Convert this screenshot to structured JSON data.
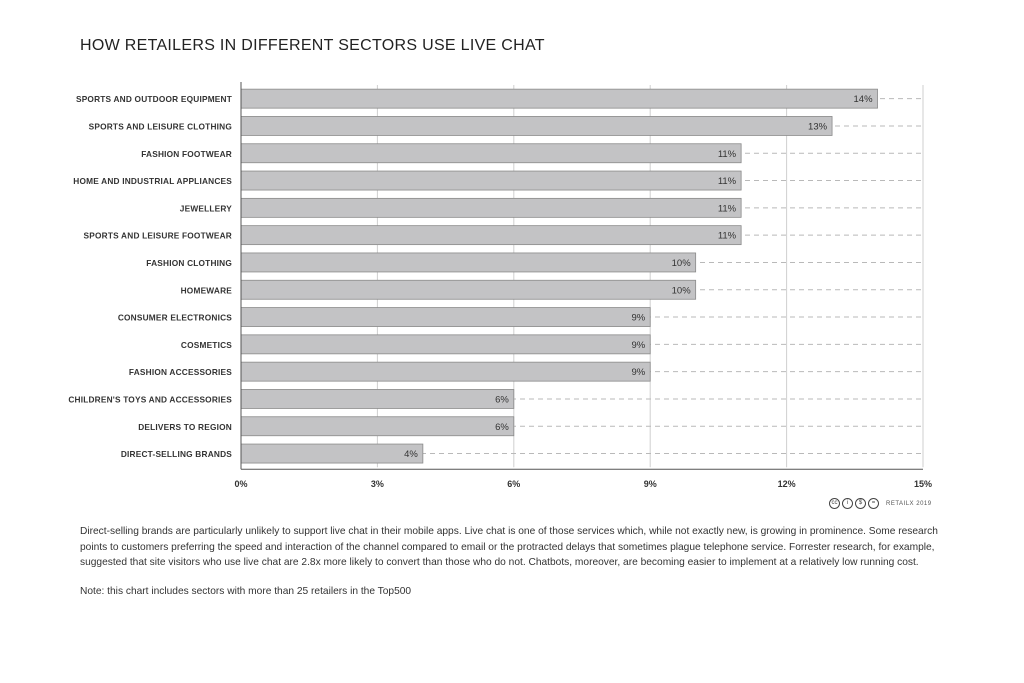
{
  "title": "HOW RETAILERS IN DIFFERENT SECTORS USE LIVE CHAT",
  "chart_data": {
    "type": "bar",
    "orientation": "horizontal",
    "title": "HOW RETAILERS IN DIFFERENT SECTORS USE LIVE CHAT",
    "categories": [
      "SPORTS AND OUTDOOR EQUIPMENT",
      "SPORTS AND LEISURE CLOTHING",
      "FASHION FOOTWEAR",
      "HOME AND INDUSTRIAL APPLIANCES",
      "JEWELLERY",
      "SPORTS AND LEISURE FOOTWEAR",
      "FASHION CLOTHING",
      "HOMEWARE",
      "CONSUMER ELECTRONICS",
      "COSMETICS",
      "FASHION ACCESSORIES",
      "CHILDREN'S TOYS AND ACCESSORIES",
      "DELIVERS TO REGION",
      "DIRECT-SELLING BRANDS"
    ],
    "values": [
      14,
      13,
      11,
      11,
      11,
      11,
      10,
      10,
      9,
      9,
      9,
      6,
      6,
      4
    ],
    "value_labels": [
      "14%",
      "13%",
      "11%",
      "11%",
      "11%",
      "11%",
      "10%",
      "10%",
      "9%",
      "9%",
      "9%",
      "6%",
      "6%",
      "4%"
    ],
    "xlim": [
      0,
      15
    ],
    "xticks": [
      0,
      3,
      6,
      9,
      12,
      15
    ],
    "xtick_labels": [
      "0%",
      "3%",
      "6%",
      "9%",
      "12%",
      "15%"
    ],
    "grid": true,
    "bar_color": "#c3c3c5",
    "bar_border": "#8a8a8a"
  },
  "credit": {
    "icons": [
      "cc-icon",
      "by-icon",
      "nc-icon",
      "nd-icon"
    ],
    "text": "RETAILX 2019"
  },
  "description": "Direct-selling brands are particularly unlikely to support live chat in their mobile apps. Live chat is one of those services which, while not exactly new, is growing in prominence. Some research points to customers preferring the speed and interaction of the channel compared to email or the protracted delays that sometimes plague telephone service. Forrester research, for example, suggested that site visitors who use live chat are 2.8x more likely to convert than those who do not. Chatbots, moreover, are becoming easier to implement at a relatively low running cost.",
  "note": "Note: this chart includes sectors with more than 25 retailers in the Top500"
}
